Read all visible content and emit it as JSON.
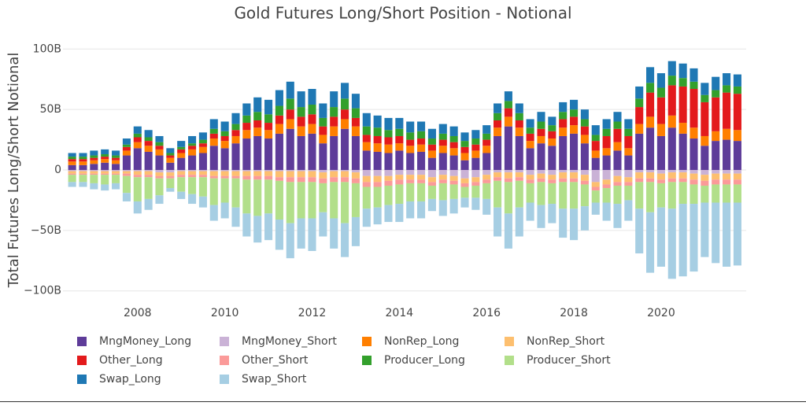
{
  "chart_data": {
    "type": "bar",
    "stacked": true,
    "title": "Gold Futures Long/Short Position - Notional",
    "y_label": "Total Futures Long/Short Notional",
    "x": [
      2006.5,
      2006.75,
      2007,
      2007.25,
      2007.5,
      2007.75,
      2008,
      2008.25,
      2008.5,
      2008.75,
      2009,
      2009.25,
      2009.5,
      2009.75,
      2010,
      2010.25,
      2010.5,
      2010.75,
      2011,
      2011.25,
      2011.5,
      2011.75,
      2012,
      2012.25,
      2012.5,
      2012.75,
      2013,
      2013.25,
      2013.5,
      2013.75,
      2014,
      2014.25,
      2014.5,
      2014.75,
      2015,
      2015.25,
      2015.5,
      2015.75,
      2016,
      2016.25,
      2016.5,
      2016.75,
      2017,
      2017.25,
      2017.5,
      2017.75,
      2018,
      2018.25,
      2018.5,
      2018.75,
      2019,
      2019.25,
      2019.5,
      2019.75,
      2020,
      2020.25,
      2020.5,
      2020.75,
      2021,
      2021.25,
      2021.5,
      2021.75
    ],
    "xlim": [
      2006.29,
      2021.95
    ],
    "xticks": [
      2008,
      2010,
      2012,
      2014,
      2016,
      2018,
      2020
    ],
    "ylim": [
      -108,
      108
    ],
    "yticks": [
      {
        "value": 100,
        "label": "100B"
      },
      {
        "value": 50,
        "label": "50B"
      },
      0,
      {
        "value": -50,
        "label": "−50B"
      },
      {
        "value": -100,
        "label": "−100B"
      }
    ],
    "grid": true,
    "series": [
      {
        "name": "MngMoney_Long",
        "color": "#5e3c99",
        "values": [
          4,
          4,
          5,
          6,
          5,
          12,
          18,
          15,
          12,
          6,
          10,
          12,
          14,
          20,
          18,
          22,
          26,
          28,
          26,
          30,
          34,
          28,
          30,
          22,
          28,
          34,
          28,
          16,
          15,
          14,
          16,
          14,
          15,
          10,
          14,
          12,
          8,
          10,
          14,
          28,
          36,
          28,
          18,
          22,
          20,
          28,
          30,
          22,
          10,
          12,
          16,
          12,
          30,
          35,
          28,
          35,
          30,
          26,
          20,
          24,
          25,
          24
        ]
      },
      {
        "name": "MngMoney_Short",
        "color": "#cab2d6",
        "values": [
          -1,
          -1,
          -1,
          -1,
          -1,
          -1,
          -1,
          -1,
          -2,
          -2,
          -1,
          -1,
          -1,
          -1,
          -1,
          -1,
          -1,
          -1,
          -1,
          -1,
          -1,
          -1,
          -1,
          -2,
          -1,
          -1,
          -2,
          -5,
          -5,
          -5,
          -4,
          -4,
          -4,
          -6,
          -4,
          -5,
          -7,
          -6,
          -4,
          -2,
          -2,
          -2,
          -4,
          -3,
          -4,
          -2,
          -2,
          -4,
          -10,
          -8,
          -5,
          -6,
          -2,
          -2,
          -3,
          -2,
          -2,
          -3,
          -4,
          -3,
          -3,
          -3
        ]
      },
      {
        "name": "NonRep_Long",
        "color": "#ff7f00",
        "values": [
          3,
          3,
          3,
          3,
          3,
          4,
          5,
          5,
          5,
          4,
          4,
          5,
          5,
          6,
          6,
          6,
          7,
          7,
          7,
          8,
          8,
          8,
          8,
          7,
          8,
          8,
          8,
          7,
          7,
          7,
          6,
          6,
          6,
          6,
          6,
          6,
          6,
          6,
          6,
          7,
          8,
          7,
          6,
          6,
          6,
          7,
          7,
          7,
          6,
          6,
          7,
          6,
          8,
          9,
          10,
          10,
          9,
          9,
          8,
          8,
          9,
          9
        ]
      },
      {
        "name": "NonRep_Short",
        "color": "#fdbf6f",
        "values": [
          -2,
          -2,
          -2,
          -2,
          -2,
          -2,
          -3,
          -3,
          -3,
          -3,
          -3,
          -3,
          -3,
          -4,
          -4,
          -4,
          -4,
          -4,
          -4,
          -5,
          -5,
          -5,
          -5,
          -5,
          -5,
          -5,
          -5,
          -5,
          -5,
          -4,
          -4,
          -4,
          -4,
          -4,
          -4,
          -4,
          -4,
          -4,
          -4,
          -4,
          -5,
          -4,
          -4,
          -4,
          -4,
          -5,
          -5,
          -5,
          -4,
          -4,
          -5,
          -4,
          -5,
          -5,
          -5,
          -5,
          -5,
          -5,
          -5,
          -5,
          -5,
          -5
        ]
      },
      {
        "name": "Other_Long",
        "color": "#e31a1c",
        "values": [
          2,
          2,
          2,
          2,
          2,
          3,
          4,
          4,
          3,
          2,
          3,
          3,
          3,
          4,
          4,
          5,
          6,
          6,
          6,
          7,
          8,
          8,
          8,
          7,
          8,
          8,
          7,
          6,
          6,
          6,
          6,
          5,
          5,
          5,
          5,
          5,
          5,
          5,
          5,
          6,
          7,
          6,
          6,
          6,
          6,
          7,
          7,
          7,
          8,
          10,
          11,
          10,
          14,
          20,
          22,
          25,
          30,
          32,
          28,
          28,
          30,
          30
        ]
      },
      {
        "name": "Other_Short",
        "color": "#fb9a99",
        "values": [
          -1,
          -1,
          -1,
          -1,
          -1,
          -2,
          -2,
          -2,
          -2,
          -2,
          -2,
          -2,
          -2,
          -2,
          -2,
          -2,
          -3,
          -3,
          -3,
          -3,
          -4,
          -4,
          -4,
          -4,
          -4,
          -4,
          -4,
          -4,
          -4,
          -4,
          -4,
          -3,
          -3,
          -3,
          -3,
          -3,
          -3,
          -3,
          -3,
          -3,
          -3,
          -3,
          -3,
          -3,
          -3,
          -3,
          -3,
          -3,
          -3,
          -3,
          -3,
          -3,
          -3,
          -3,
          -3,
          -3,
          -3,
          -4,
          -4,
          -4,
          -4,
          -4
        ]
      },
      {
        "name": "Producer_Long",
        "color": "#33a02c",
        "values": [
          2,
          2,
          2,
          2,
          2,
          2,
          3,
          3,
          3,
          2,
          2,
          2,
          3,
          4,
          4,
          5,
          6,
          7,
          7,
          8,
          9,
          8,
          8,
          7,
          8,
          9,
          8,
          7,
          7,
          6,
          6,
          6,
          6,
          5,
          5,
          5,
          5,
          5,
          5,
          6,
          6,
          6,
          5,
          6,
          5,
          6,
          6,
          6,
          5,
          6,
          6,
          6,
          7,
          8,
          8,
          8,
          7,
          6,
          6,
          6,
          6,
          6
        ]
      },
      {
        "name": "Producer_Short",
        "color": "#b2df8a",
        "values": [
          -6,
          -6,
          -7,
          -8,
          -7,
          -14,
          -20,
          -18,
          -14,
          -8,
          -12,
          -14,
          -16,
          -22,
          -20,
          -24,
          -28,
          -30,
          -28,
          -32,
          -34,
          -30,
          -30,
          -24,
          -30,
          -34,
          -28,
          -18,
          -17,
          -16,
          -16,
          -15,
          -15,
          -11,
          -14,
          -12,
          -9,
          -10,
          -13,
          -22,
          -26,
          -22,
          -16,
          -19,
          -17,
          -22,
          -22,
          -18,
          -10,
          -12,
          -15,
          -12,
          -22,
          -25,
          -20,
          -22,
          -18,
          -16,
          -14,
          -15,
          -15,
          -15
        ]
      },
      {
        "name": "Swap_Long",
        "color": "#1f78b4",
        "values": [
          3,
          3,
          4,
          4,
          4,
          5,
          6,
          6,
          5,
          4,
          5,
          6,
          6,
          8,
          8,
          9,
          10,
          12,
          12,
          13,
          14,
          13,
          13,
          12,
          13,
          13,
          12,
          11,
          10,
          10,
          9,
          9,
          8,
          8,
          8,
          8,
          7,
          7,
          7,
          8,
          8,
          8,
          7,
          8,
          7,
          8,
          8,
          8,
          8,
          8,
          8,
          8,
          10,
          13,
          12,
          12,
          12,
          11,
          10,
          11,
          10,
          10
        ]
      },
      {
        "name": "Swap_Short",
        "color": "#a6cee3",
        "values": [
          -4,
          -4,
          -5,
          -5,
          -5,
          -7,
          -10,
          -9,
          -7,
          -3,
          -6,
          -8,
          -9,
          -13,
          -13,
          -16,
          -19,
          -22,
          -22,
          -25,
          -29,
          -25,
          -27,
          -20,
          -25,
          -28,
          -24,
          -15,
          -14,
          -14,
          -15,
          -14,
          -14,
          -10,
          -13,
          -12,
          -8,
          -10,
          -13,
          -24,
          -29,
          -24,
          -15,
          -19,
          -16,
          -24,
          -26,
          -20,
          -10,
          -15,
          -20,
          -17,
          -37,
          -50,
          -49,
          -58,
          -60,
          -56,
          -45,
          -50,
          -53,
          -52
        ]
      }
    ]
  }
}
